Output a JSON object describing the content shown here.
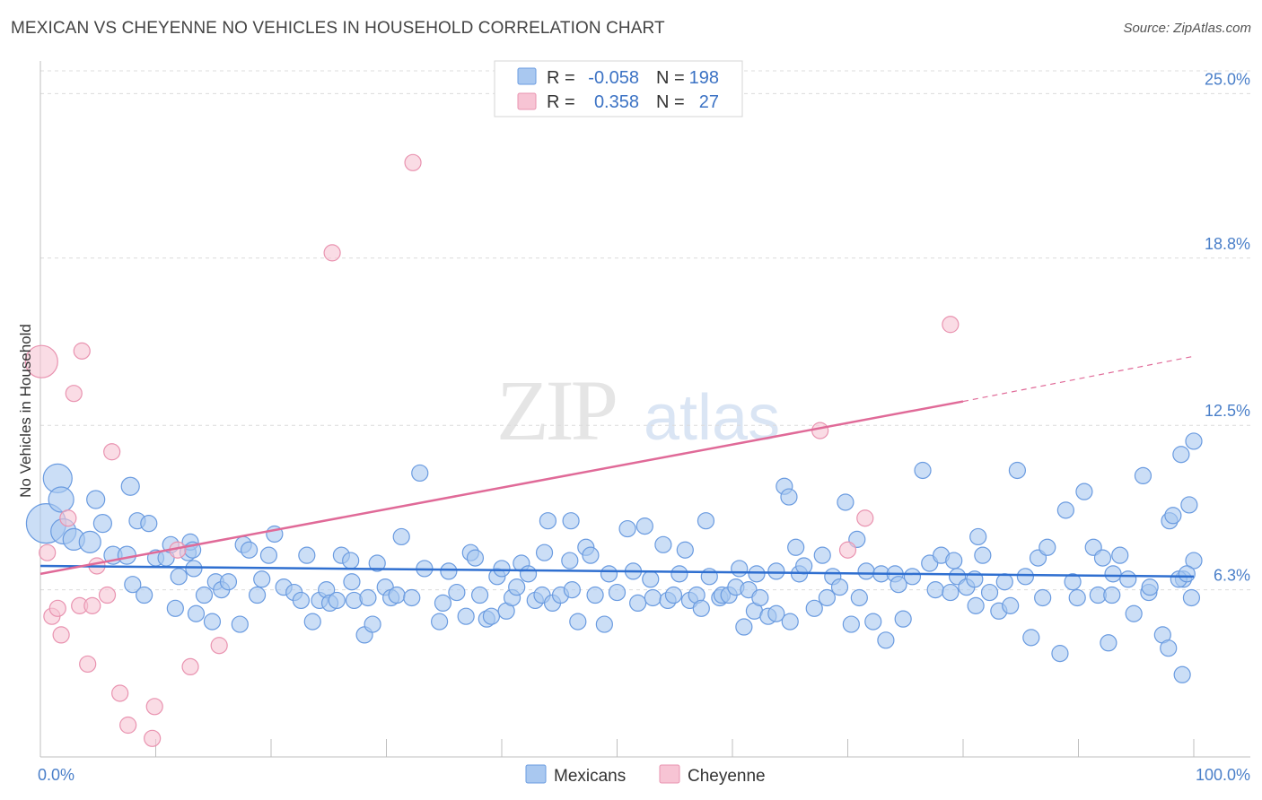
{
  "title": "MEXICAN VS CHEYENNE NO VEHICLES IN HOUSEHOLD CORRELATION CHART",
  "source": "Source: ZipAtlas.com",
  "watermark": {
    "zip": "ZIP",
    "atlas": "atlas"
  },
  "colors": {
    "blue_fill": "#a9c8f0",
    "blue_stroke": "#6a9be0",
    "blue_line": "#2f6fd0",
    "pink_fill": "#f7c4d4",
    "pink_stroke": "#e993b0",
    "pink_line": "#e06a98",
    "tick_text": "#4a7fc9",
    "grid": "#dcdcdc"
  },
  "legend": {
    "rows": [
      {
        "r_label": "R =",
        "r_value": "-0.058",
        "n_label": "N =",
        "n_value": "198",
        "series": "Mexicans"
      },
      {
        "r_label": "R =",
        "r_value": "0.358",
        "n_label": "N =",
        "n_value": "27",
        "series": "Cheyenne"
      }
    ]
  },
  "bottom_legend": [
    "Mexicans",
    "Cheyenne"
  ],
  "chart_data": {
    "type": "scatter",
    "title": "MEXICAN VS CHEYENNE NO VEHICLES IN HOUSEHOLD CORRELATION CHART",
    "ylabel": "No Vehicles in Household",
    "xlabel": "",
    "xlim": [
      0,
      100
    ],
    "ylim": [
      0,
      26.5
    ],
    "x_tick_labels": [
      "0.0%",
      "100.0%"
    ],
    "y_ticks": [
      {
        "value": 6.3,
        "label": "6.3%"
      },
      {
        "value": 12.5,
        "label": "12.5%"
      },
      {
        "value": 18.8,
        "label": "18.8%"
      },
      {
        "value": 25.0,
        "label": "25.0%"
      }
    ],
    "series": [
      {
        "name": "Mexicans",
        "trend": {
          "x0": 0,
          "y0": 7.2,
          "x1": 100,
          "y1": 6.8,
          "dashed_from": 100
        },
        "points": [
          [
            0.5,
            8.8,
            22
          ],
          [
            1.5,
            10.5,
            16
          ],
          [
            1.8,
            9.7,
            14
          ],
          [
            2.0,
            8.5,
            14
          ],
          [
            2.9,
            8.2,
            12
          ],
          [
            4.3,
            8.1,
            12
          ],
          [
            4.8,
            9.7,
            10
          ],
          [
            5.4,
            8.8,
            10
          ],
          [
            6.3,
            7.6,
            10
          ],
          [
            7.5,
            7.6,
            10
          ],
          [
            7.8,
            10.2,
            10
          ],
          [
            8.4,
            8.9,
            9
          ],
          [
            8.0,
            6.5,
            9
          ],
          [
            9.0,
            6.1,
            9
          ],
          [
            9.4,
            8.8,
            9
          ],
          [
            10.0,
            7.5,
            9
          ],
          [
            10.9,
            7.5,
            9
          ],
          [
            11.3,
            8.0,
            9
          ],
          [
            11.7,
            5.6,
            9
          ],
          [
            12.0,
            6.8,
            9
          ],
          [
            12.8,
            7.7,
            9
          ],
          [
            13.0,
            8.1,
            9
          ],
          [
            13.2,
            7.8,
            9
          ],
          [
            13.3,
            7.1,
            9
          ],
          [
            13.5,
            5.4,
            9
          ],
          [
            14.2,
            6.1,
            9
          ],
          [
            14.9,
            5.1,
            9
          ],
          [
            15.2,
            6.6,
            9
          ],
          [
            15.7,
            6.3,
            9
          ],
          [
            16.3,
            6.6,
            9
          ],
          [
            17.3,
            5.0,
            9
          ],
          [
            17.6,
            8.0,
            9
          ],
          [
            18.1,
            7.8,
            9
          ],
          [
            18.8,
            6.1,
            9
          ],
          [
            19.2,
            6.7,
            9
          ],
          [
            19.8,
            7.6,
            9
          ],
          [
            20.3,
            8.4,
            9
          ],
          [
            21.1,
            6.4,
            9
          ],
          [
            22.0,
            6.2,
            9
          ],
          [
            22.6,
            5.9,
            9
          ],
          [
            23.1,
            7.6,
            9
          ],
          [
            23.6,
            5.1,
            9
          ],
          [
            24.2,
            5.9,
            9
          ],
          [
            24.8,
            6.3,
            9
          ],
          [
            25.1,
            5.8,
            9
          ],
          [
            25.7,
            5.9,
            9
          ],
          [
            26.1,
            7.6,
            9
          ],
          [
            26.9,
            7.4,
            9
          ],
          [
            27.0,
            6.6,
            9
          ],
          [
            27.2,
            5.9,
            9
          ],
          [
            28.1,
            4.6,
            9
          ],
          [
            28.4,
            6.0,
            9
          ],
          [
            28.8,
            5.0,
            9
          ],
          [
            29.2,
            7.3,
            9
          ],
          [
            29.9,
            6.4,
            9
          ],
          [
            30.4,
            6.0,
            9
          ],
          [
            30.9,
            6.1,
            9
          ],
          [
            31.3,
            8.3,
            9
          ],
          [
            32.2,
            6.0,
            9
          ],
          [
            32.9,
            10.7,
            9
          ],
          [
            33.3,
            7.1,
            9
          ],
          [
            34.6,
            5.1,
            9
          ],
          [
            34.9,
            5.8,
            9
          ],
          [
            35.4,
            7.0,
            9
          ],
          [
            36.1,
            6.2,
            9
          ],
          [
            36.9,
            5.3,
            9
          ],
          [
            37.3,
            7.7,
            9
          ],
          [
            37.7,
            7.5,
            9
          ],
          [
            38.1,
            6.1,
            9
          ],
          [
            38.7,
            5.2,
            9
          ],
          [
            39.1,
            5.3,
            9
          ],
          [
            39.6,
            6.8,
            9
          ],
          [
            40.0,
            7.1,
            9
          ],
          [
            40.4,
            5.5,
            9
          ],
          [
            40.9,
            6.0,
            9
          ],
          [
            41.3,
            6.4,
            9
          ],
          [
            41.7,
            7.3,
            9
          ],
          [
            42.3,
            6.9,
            9
          ],
          [
            42.9,
            5.9,
            9
          ],
          [
            43.5,
            6.1,
            9
          ],
          [
            43.7,
            7.7,
            9
          ],
          [
            44.0,
            8.9,
            9
          ],
          [
            44.4,
            5.8,
            9
          ],
          [
            45.1,
            6.1,
            9
          ],
          [
            45.9,
            7.4,
            9
          ],
          [
            46.0,
            8.9,
            9
          ],
          [
            46.1,
            6.3,
            9
          ],
          [
            46.6,
            5.1,
            9
          ],
          [
            47.3,
            7.9,
            9
          ],
          [
            47.7,
            7.6,
            9
          ],
          [
            48.1,
            6.1,
            9
          ],
          [
            48.9,
            5.0,
            9
          ],
          [
            49.3,
            6.9,
            9
          ],
          [
            50.0,
            6.2,
            9
          ],
          [
            50.9,
            8.6,
            9
          ],
          [
            51.4,
            7.0,
            9
          ],
          [
            51.8,
            5.8,
            9
          ],
          [
            52.4,
            8.7,
            9
          ],
          [
            52.9,
            6.7,
            9
          ],
          [
            53.1,
            6.0,
            9
          ],
          [
            54.0,
            8.0,
            9
          ],
          [
            54.4,
            5.9,
            9
          ],
          [
            54.9,
            6.1,
            9
          ],
          [
            55.4,
            6.9,
            9
          ],
          [
            55.9,
            7.8,
            9
          ],
          [
            56.3,
            5.9,
            9
          ],
          [
            56.9,
            6.1,
            9
          ],
          [
            57.3,
            5.6,
            9
          ],
          [
            57.7,
            8.9,
            9
          ],
          [
            58.0,
            6.8,
            9
          ],
          [
            58.9,
            6.0,
            9
          ],
          [
            59.1,
            6.1,
            9
          ],
          [
            59.7,
            6.1,
            9
          ],
          [
            60.3,
            6.4,
            9
          ],
          [
            60.6,
            7.1,
            9
          ],
          [
            61.0,
            4.9,
            9
          ],
          [
            61.4,
            6.3,
            9
          ],
          [
            61.9,
            5.5,
            9
          ],
          [
            62.1,
            6.9,
            9
          ],
          [
            62.4,
            6.0,
            9
          ],
          [
            63.1,
            5.3,
            9
          ],
          [
            63.8,
            5.4,
            9
          ],
          [
            63.8,
            7.0,
            9
          ],
          [
            64.5,
            10.2,
            9
          ],
          [
            64.9,
            9.8,
            9
          ],
          [
            65.0,
            5.1,
            9
          ],
          [
            65.5,
            7.9,
            9
          ],
          [
            65.8,
            6.9,
            9
          ],
          [
            66.2,
            7.2,
            9
          ],
          [
            67.1,
            5.6,
            9
          ],
          [
            67.8,
            7.6,
            9
          ],
          [
            68.2,
            6.0,
            9
          ],
          [
            68.7,
            6.8,
            9
          ],
          [
            69.3,
            6.4,
            9
          ],
          [
            69.8,
            9.6,
            9
          ],
          [
            70.3,
            5.0,
            9
          ],
          [
            70.8,
            8.2,
            9
          ],
          [
            71.0,
            6.0,
            9
          ],
          [
            71.6,
            7.0,
            9
          ],
          [
            72.2,
            5.1,
            9
          ],
          [
            72.9,
            6.9,
            9
          ],
          [
            73.3,
            4.4,
            9
          ],
          [
            74.1,
            6.9,
            9
          ],
          [
            74.4,
            6.5,
            9
          ],
          [
            74.8,
            5.2,
            9
          ],
          [
            75.6,
            6.8,
            9
          ],
          [
            76.5,
            10.8,
            9
          ],
          [
            77.1,
            7.3,
            9
          ],
          [
            77.6,
            6.3,
            9
          ],
          [
            78.1,
            7.6,
            9
          ],
          [
            78.9,
            6.2,
            9
          ],
          [
            79.2,
            7.4,
            9
          ],
          [
            79.5,
            6.8,
            9
          ],
          [
            80.3,
            6.4,
            9
          ],
          [
            81.0,
            6.7,
            9
          ],
          [
            81.1,
            5.7,
            9
          ],
          [
            81.3,
            8.3,
            9
          ],
          [
            81.7,
            7.6,
            9
          ],
          [
            82.3,
            6.2,
            9
          ],
          [
            83.1,
            5.5,
            9
          ],
          [
            83.6,
            6.6,
            9
          ],
          [
            84.1,
            5.7,
            9
          ],
          [
            84.7,
            10.8,
            9
          ],
          [
            85.4,
            6.8,
            9
          ],
          [
            85.9,
            4.5,
            9
          ],
          [
            86.5,
            7.5,
            9
          ],
          [
            86.9,
            6.0,
            9
          ],
          [
            87.3,
            7.9,
            9
          ],
          [
            88.4,
            3.9,
            9
          ],
          [
            88.9,
            9.3,
            9
          ],
          [
            89.5,
            6.6,
            9
          ],
          [
            89.9,
            6.0,
            9
          ],
          [
            90.5,
            10.0,
            9
          ],
          [
            91.3,
            7.9,
            9
          ],
          [
            91.7,
            6.1,
            9
          ],
          [
            92.1,
            7.5,
            9
          ],
          [
            92.6,
            4.3,
            9
          ],
          [
            92.9,
            6.1,
            9
          ],
          [
            93.0,
            6.9,
            9
          ],
          [
            93.6,
            7.6,
            9
          ],
          [
            94.3,
            6.7,
            9
          ],
          [
            94.8,
            5.4,
            9
          ],
          [
            95.6,
            10.6,
            9
          ],
          [
            96.1,
            6.2,
            9
          ],
          [
            96.2,
            6.4,
            9
          ],
          [
            97.3,
            4.6,
            9
          ],
          [
            97.8,
            4.1,
            9
          ],
          [
            97.9,
            8.9,
            9
          ],
          [
            98.2,
            9.1,
            9
          ],
          [
            98.9,
            11.4,
            9
          ],
          [
            99.1,
            6.7,
            9
          ],
          [
            99.6,
            9.5,
            9
          ],
          [
            99.8,
            6.0,
            9
          ],
          [
            100.0,
            11.9,
            9
          ],
          [
            100.0,
            7.4,
            9
          ],
          [
            99.0,
            3.1,
            9
          ],
          [
            98.7,
            6.7,
            9
          ],
          [
            99.4,
            6.9,
            9
          ]
        ]
      },
      {
        "name": "Cheyenne",
        "trend": {
          "x0": 0,
          "y0": 6.9,
          "x1": 80,
          "y1": 13.4,
          "dashed_from": 80,
          "x_end": 100,
          "y_end": 15.1
        },
        "points": [
          [
            0.1,
            14.9,
            18
          ],
          [
            0.6,
            7.7,
            9
          ],
          [
            1.0,
            5.3,
            9
          ],
          [
            1.5,
            5.6,
            9
          ],
          [
            1.8,
            4.6,
            9
          ],
          [
            2.4,
            9.0,
            9
          ],
          [
            2.9,
            13.7,
            9
          ],
          [
            3.4,
            5.7,
            9
          ],
          [
            3.6,
            15.3,
            9
          ],
          [
            4.1,
            3.5,
            9
          ],
          [
            4.5,
            5.7,
            9
          ],
          [
            4.9,
            7.2,
            9
          ],
          [
            5.8,
            6.1,
            9
          ],
          [
            6.2,
            11.5,
            9
          ],
          [
            6.9,
            2.4,
            9
          ],
          [
            7.6,
            1.2,
            9
          ],
          [
            9.7,
            0.7,
            9
          ],
          [
            9.9,
            1.9,
            9
          ],
          [
            11.9,
            7.8,
            9
          ],
          [
            13.0,
            3.4,
            9
          ],
          [
            15.5,
            4.2,
            9
          ],
          [
            25.3,
            19.0,
            9
          ],
          [
            32.3,
            22.4,
            9
          ],
          [
            67.6,
            12.3,
            9
          ],
          [
            70.0,
            7.8,
            9
          ],
          [
            71.5,
            9.0,
            9
          ],
          [
            78.9,
            16.3,
            9
          ]
        ]
      }
    ]
  }
}
